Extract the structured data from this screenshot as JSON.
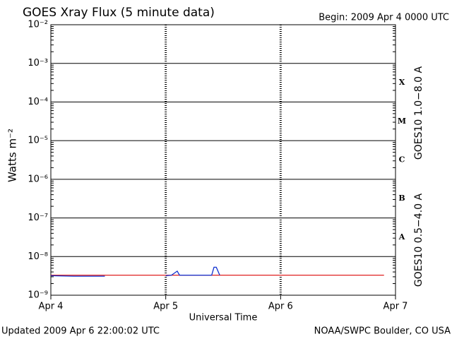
{
  "chart_data": {
    "type": "line",
    "title": "GOES Xray Flux (5 minute data)",
    "subtitle": "Begin:  2009 Apr 4 0000 UTC",
    "ylabel": "Watts m⁻²",
    "xlabel": "Universal Time",
    "footer_left": "Updated 2009 Apr  6 22:00:02 UTC",
    "footer_right": "NOAA/SWPC Boulder, CO USA",
    "log_scale": true,
    "grid": true,
    "ylim": [
      1e-09,
      0.01
    ],
    "yticks": [
      {
        "value": 1e-09,
        "label": "10⁻⁹"
      },
      {
        "value": 1e-08,
        "label": "10⁻⁸"
      },
      {
        "value": 1e-07,
        "label": "10⁻⁷"
      },
      {
        "value": 1e-06,
        "label": "10⁻⁶"
      },
      {
        "value": 1e-05,
        "label": "10⁻⁵"
      },
      {
        "value": 0.0001,
        "label": "10⁻⁴"
      },
      {
        "value": 0.001,
        "label": "10⁻³"
      },
      {
        "value": 0.01,
        "label": "10⁻²"
      }
    ],
    "xlim": [
      0,
      3
    ],
    "xticks": [
      {
        "value": 0,
        "label": "Apr 4"
      },
      {
        "value": 1,
        "label": "Apr 5"
      },
      {
        "value": 2,
        "label": "Apr 6"
      },
      {
        "value": 3,
        "label": "Apr 7"
      }
    ],
    "flare_classes": [
      "A",
      "B",
      "C",
      "M",
      "X"
    ],
    "x": [
      0,
      0.2,
      0.47,
      0.6,
      1.0,
      1.05,
      1.1,
      1.12,
      1.4,
      1.42,
      1.44,
      1.47,
      1.6,
      2.0,
      2.5,
      2.9
    ],
    "series": [
      {
        "name": "GOES10 1.0−8.0 A",
        "color": "#e02020",
        "values": [
          3.3e-09,
          3.3e-09,
          3.3e-09,
          3.3e-09,
          3.3e-09,
          3.3e-09,
          3.3e-09,
          3.3e-09,
          3.3e-09,
          3.3e-09,
          3.3e-09,
          3.3e-09,
          3.3e-09,
          3.3e-09,
          3.3e-09,
          3.3e-09
        ]
      },
      {
        "name": "GOES10 0.5−4.0 A",
        "color": "#1030d0",
        "values": [
          3.2e-09,
          3.1e-09,
          3.1e-09,
          null,
          3.2e-09,
          3.3e-09,
          4.2e-09,
          3.3e-09,
          3.3e-09,
          5.3e-09,
          5.3e-09,
          3.3e-09,
          null,
          null,
          null,
          null
        ]
      }
    ]
  }
}
